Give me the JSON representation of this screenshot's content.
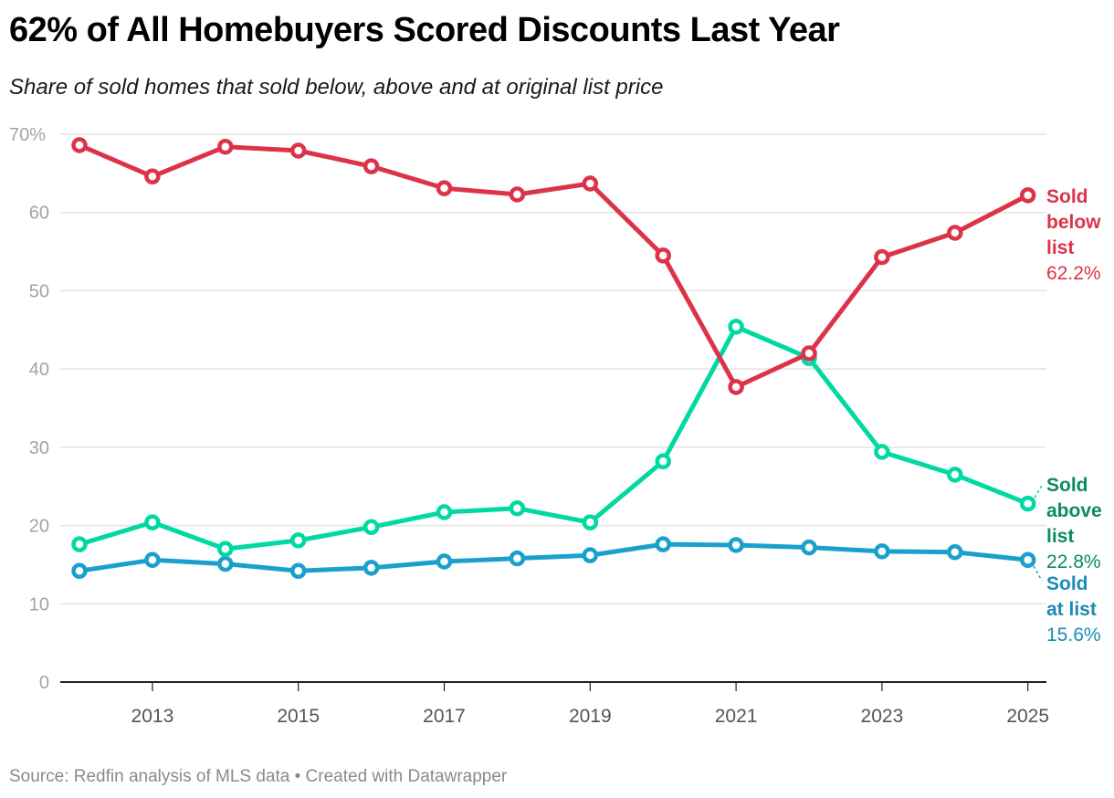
{
  "header": {
    "title": "62% of All Homebuyers Scored Discounts Last Year",
    "subtitle": "Share of sold homes that sold below, above and at original list price"
  },
  "footer": {
    "source": "Source: Redfin analysis of MLS data • Created with Datawrapper"
  },
  "labels": {
    "below": {
      "line1": "Sold",
      "line2": "below",
      "line3": "list",
      "value": "62.2%",
      "color": "#dc3349"
    },
    "above": {
      "line1": "Sold",
      "line2": "above",
      "line3": "list",
      "value": "22.8%",
      "color": "#0b8c5c"
    },
    "at": {
      "line1": "Sold",
      "line2": "at list",
      "value": "15.6%",
      "color": "#1a8cb5"
    }
  },
  "chart_data": {
    "type": "line",
    "title": "62% of All Homebuyers Scored Discounts Last Year",
    "subtitle": "Share of sold homes that sold below, above and at original list price",
    "xlabel": "",
    "ylabel": "",
    "x": [
      2012,
      2013,
      2014,
      2015,
      2016,
      2017,
      2018,
      2019,
      2020,
      2021,
      2022,
      2023,
      2024,
      2025
    ],
    "x_tick_labels": [
      "2013",
      "2015",
      "2017",
      "2019",
      "2021",
      "2023",
      "2025"
    ],
    "y_tick_labels": [
      "0",
      "10",
      "20",
      "30",
      "40",
      "50",
      "60",
      "70%"
    ],
    "ylim": [
      0,
      70
    ],
    "grid": true,
    "legend_position": "inline-right",
    "series": [
      {
        "name": "Sold below list",
        "color": "#dc3349",
        "values": [
          68.6,
          64.6,
          68.4,
          67.9,
          65.9,
          63.1,
          62.3,
          63.7,
          54.5,
          37.7,
          42.0,
          54.3,
          57.4,
          62.2
        ]
      },
      {
        "name": "Sold above list",
        "color": "#00d9a2",
        "values": [
          17.6,
          20.4,
          17.0,
          18.1,
          19.8,
          21.7,
          22.2,
          20.4,
          28.2,
          45.4,
          41.4,
          29.4,
          26.5,
          22.8
        ]
      },
      {
        "name": "Sold at list",
        "color": "#1aa0cc",
        "values": [
          14.2,
          15.6,
          15.1,
          14.2,
          14.6,
          15.4,
          15.8,
          16.2,
          17.6,
          17.5,
          17.2,
          16.7,
          16.6,
          15.6
        ]
      }
    ],
    "annotations": [
      "Sold below list 62.2%",
      "Sold above list 22.8%",
      "Sold at list 15.6%"
    ],
    "source": "Source: Redfin analysis of MLS data • Created with Datawrapper"
  }
}
